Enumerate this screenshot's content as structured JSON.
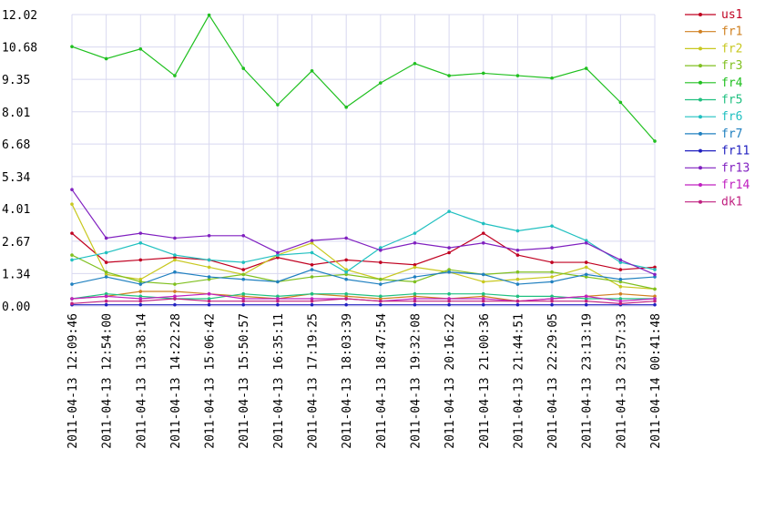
{
  "chart_data": {
    "type": "line",
    "title": "",
    "xlabel": "",
    "ylabel": "",
    "ylim": [
      0,
      12.02
    ],
    "grid": true,
    "legend_placement": "right",
    "yticks": [
      "0.00",
      "1.34",
      "2.67",
      "4.01",
      "5.34",
      "6.68",
      "8.01",
      "9.35",
      "10.68",
      "12.02"
    ],
    "ytick_values": [
      0,
      1.34,
      2.67,
      4.01,
      5.34,
      6.68,
      8.01,
      9.35,
      10.68,
      12.02
    ],
    "x": [
      "2011-04-13 12:09:46",
      "2011-04-13 12:54:00",
      "2011-04-13 13:38:14",
      "2011-04-13 14:22:28",
      "2011-04-13 15:06:42",
      "2011-04-13 15:50:57",
      "2011-04-13 16:35:11",
      "2011-04-13 17:19:25",
      "2011-04-13 18:03:39",
      "2011-04-13 18:47:54",
      "2011-04-13 19:32:08",
      "2011-04-13 20:16:22",
      "2011-04-13 21:00:36",
      "2011-04-13 21:44:51",
      "2011-04-13 22:29:05",
      "2011-04-13 23:13:19",
      "2011-04-13 23:57:33",
      "2011-04-14 00:41:48"
    ],
    "series": [
      {
        "name": "us1",
        "color": "#c00020",
        "values": [
          3.0,
          1.8,
          1.9,
          2.0,
          1.9,
          1.5,
          2.0,
          1.7,
          1.9,
          1.8,
          1.7,
          2.2,
          3.0,
          2.1,
          1.8,
          1.8,
          1.5,
          1.6
        ]
      },
      {
        "name": "fr1",
        "color": "#d08020",
        "values": [
          0.3,
          0.4,
          0.6,
          0.6,
          0.5,
          0.4,
          0.3,
          0.5,
          0.4,
          0.3,
          0.4,
          0.3,
          0.4,
          0.2,
          0.3,
          0.4,
          0.5,
          0.4
        ]
      },
      {
        "name": "fr2",
        "color": "#c8c820",
        "values": [
          4.2,
          1.3,
          1.1,
          1.9,
          1.6,
          1.3,
          2.1,
          2.6,
          1.5,
          1.1,
          1.6,
          1.4,
          1.0,
          1.1,
          1.2,
          1.6,
          0.8,
          0.7
        ]
      },
      {
        "name": "fr3",
        "color": "#80c020",
        "values": [
          2.1,
          1.4,
          1.0,
          0.9,
          1.1,
          1.3,
          1.0,
          1.2,
          1.3,
          1.1,
          1.0,
          1.5,
          1.3,
          1.4,
          1.4,
          1.2,
          1.0,
          0.7
        ]
      },
      {
        "name": "fr4",
        "color": "#20c020",
        "values": [
          10.7,
          10.2,
          10.6,
          9.5,
          12.0,
          9.8,
          8.3,
          9.7,
          8.2,
          9.2,
          10.0,
          9.5,
          9.6,
          9.5,
          9.4,
          9.8,
          8.4,
          6.8
        ]
      },
      {
        "name": "fr5",
        "color": "#20c080",
        "values": [
          0.3,
          0.5,
          0.4,
          0.3,
          0.3,
          0.5,
          0.4,
          0.5,
          0.5,
          0.4,
          0.5,
          0.5,
          0.5,
          0.4,
          0.4,
          0.3,
          0.3,
          0.3
        ]
      },
      {
        "name": "fr6",
        "color": "#20c0c0",
        "values": [
          1.9,
          2.2,
          2.6,
          2.1,
          1.9,
          1.8,
          2.1,
          2.2,
          1.4,
          2.4,
          3.0,
          3.9,
          3.4,
          3.1,
          3.3,
          2.7,
          1.8,
          1.5
        ]
      },
      {
        "name": "fr7",
        "color": "#2080c0",
        "values": [
          0.9,
          1.2,
          0.9,
          1.4,
          1.2,
          1.1,
          1.0,
          1.5,
          1.1,
          0.9,
          1.2,
          1.4,
          1.3,
          0.9,
          1.0,
          1.3,
          1.1,
          1.2
        ]
      },
      {
        "name": "fr11",
        "color": "#2020c0",
        "values": [
          0.05,
          0.05,
          0.05,
          0.05,
          0.05,
          0.05,
          0.05,
          0.05,
          0.05,
          0.05,
          0.05,
          0.05,
          0.05,
          0.05,
          0.05,
          0.05,
          0.05,
          0.05
        ]
      },
      {
        "name": "fr13",
        "color": "#8020c0",
        "values": [
          4.8,
          2.8,
          3.0,
          2.8,
          2.9,
          2.9,
          2.2,
          2.7,
          2.8,
          2.3,
          2.6,
          2.4,
          2.6,
          2.3,
          2.4,
          2.6,
          1.9,
          1.3
        ]
      },
      {
        "name": "fr14",
        "color": "#c020c0",
        "values": [
          0.3,
          0.4,
          0.3,
          0.4,
          0.5,
          0.3,
          0.3,
          0.3,
          0.3,
          0.2,
          0.3,
          0.3,
          0.3,
          0.2,
          0.3,
          0.4,
          0.2,
          0.3
        ]
      },
      {
        "name": "dk1",
        "color": "#c02080",
        "values": [
          0.1,
          0.2,
          0.2,
          0.3,
          0.2,
          0.2,
          0.2,
          0.2,
          0.3,
          0.2,
          0.2,
          0.2,
          0.2,
          0.2,
          0.2,
          0.2,
          0.1,
          0.2
        ]
      }
    ]
  }
}
